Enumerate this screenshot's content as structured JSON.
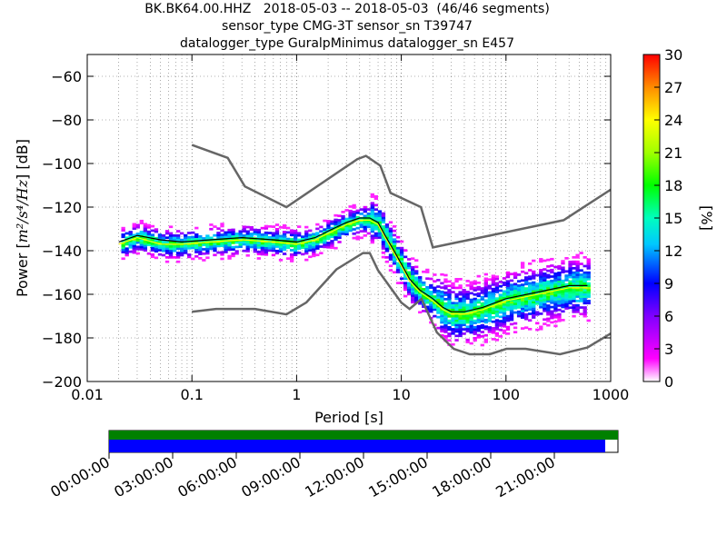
{
  "chart_data": {
    "type": "heatmap",
    "title_lines": [
      "BK.BK64.00.HHZ   2018-05-03 -- 2018-05-03  (46/46 segments)",
      "sensor_type CMG-3T sensor_sn T39747",
      "datalogger_type GuralpMinimus datalogger_sn E457"
    ],
    "xlabel": "Period [s]",
    "ylabel_prefix": "Power [",
    "ylabel_units": "m²/s⁴/Hz",
    "ylabel_suffix": "] [dB]",
    "xscale": "log",
    "xlim": [
      0.01,
      1000
    ],
    "ylim": [
      -200,
      -50
    ],
    "x_ticks": [
      {
        "value": 0.01,
        "label": "0.01"
      },
      {
        "value": 0.1,
        "label": "0.1"
      },
      {
        "value": 1,
        "label": "1"
      },
      {
        "value": 10,
        "label": "10"
      },
      {
        "value": 100,
        "label": "100"
      },
      {
        "value": 1000,
        "label": "1000"
      }
    ],
    "y_ticks": [
      {
        "value": -60,
        "label": "−60"
      },
      {
        "value": -80,
        "label": "−80"
      },
      {
        "value": -100,
        "label": "−100"
      },
      {
        "value": -120,
        "label": "−120"
      },
      {
        "value": -140,
        "label": "−140"
      },
      {
        "value": -160,
        "label": "−160"
      },
      {
        "value": -180,
        "label": "−180"
      },
      {
        "value": -200,
        "label": "−200"
      }
    ],
    "grid": true,
    "colorbar": {
      "label": "[%]",
      "range": [
        0,
        30
      ],
      "ticks": [
        "0",
        "3",
        "6",
        "9",
        "12",
        "15",
        "18",
        "21",
        "24",
        "27",
        "30"
      ]
    },
    "noise_models": {
      "high": [
        [
          0.1,
          -91.5
        ],
        [
          0.22,
          -97.4
        ],
        [
          0.32,
          -110.5
        ],
        [
          0.8,
          -120
        ],
        [
          3.8,
          -98
        ],
        [
          4.6,
          -96.5
        ],
        [
          6.3,
          -101
        ],
        [
          7.9,
          -113.5
        ],
        [
          15.4,
          -120
        ],
        [
          20,
          -138.5
        ],
        [
          354.8,
          -126
        ],
        [
          1000,
          -112
        ]
      ],
      "low": [
        [
          0.1,
          -168
        ],
        [
          0.17,
          -166.7
        ],
        [
          0.4,
          -166.7
        ],
        [
          0.8,
          -169.2
        ],
        [
          1.24,
          -163.7
        ],
        [
          2.4,
          -148.6
        ],
        [
          4.3,
          -141.1
        ],
        [
          5,
          -141.1
        ],
        [
          6,
          -149
        ],
        [
          10,
          -163.8
        ],
        [
          12,
          -166.7
        ],
        [
          15.6,
          -162.1
        ],
        [
          21.9,
          -177.5
        ],
        [
          31.6,
          -185
        ],
        [
          45,
          -187.5
        ],
        [
          70,
          -187.5
        ],
        [
          101,
          -185
        ],
        [
          154,
          -185
        ],
        [
          328,
          -187.5
        ],
        [
          600,
          -184.4
        ],
        [
          1000,
          -178
        ]
      ]
    },
    "median": [
      [
        0.02,
        -136
      ],
      [
        0.03,
        -133
      ],
      [
        0.05,
        -135
      ],
      [
        0.08,
        -136
      ],
      [
        0.15,
        -135
      ],
      [
        0.3,
        -134
      ],
      [
        0.6,
        -135
      ],
      [
        1.0,
        -136
      ],
      [
        1.5,
        -134
      ],
      [
        2.0,
        -131
      ],
      [
        3.0,
        -127
      ],
      [
        4.0,
        -125
      ],
      [
        5.0,
        -125
      ],
      [
        6.0,
        -127
      ],
      [
        7.0,
        -133
      ],
      [
        8.5,
        -140
      ],
      [
        10,
        -146
      ],
      [
        12,
        -153
      ],
      [
        15,
        -158
      ],
      [
        20,
        -162
      ],
      [
        25,
        -166
      ],
      [
        30,
        -168
      ],
      [
        40,
        -168
      ],
      [
        60,
        -166
      ],
      [
        100,
        -162
      ],
      [
        200,
        -159
      ],
      [
        400,
        -156
      ],
      [
        600,
        -156
      ]
    ],
    "mode": [
      [
        0.02,
        -137
      ],
      [
        0.03,
        -134
      ],
      [
        0.05,
        -137
      ],
      [
        0.08,
        -137
      ],
      [
        0.15,
        -136
      ],
      [
        0.3,
        -135
      ],
      [
        0.6,
        -136
      ],
      [
        1.0,
        -137
      ],
      [
        1.5,
        -135
      ],
      [
        2.0,
        -132
      ],
      [
        3.0,
        -128
      ],
      [
        4.0,
        -126
      ],
      [
        5.0,
        -126
      ],
      [
        6.0,
        -128
      ],
      [
        7.0,
        -134
      ],
      [
        8.5,
        -141
      ],
      [
        10,
        -147
      ],
      [
        12,
        -154
      ],
      [
        15,
        -159
      ],
      [
        20,
        -163
      ],
      [
        25,
        -167
      ],
      [
        30,
        -169
      ],
      [
        40,
        -169
      ],
      [
        60,
        -167
      ],
      [
        100,
        -163
      ],
      [
        200,
        -160
      ],
      [
        400,
        -157
      ],
      [
        600,
        -157
      ]
    ],
    "data_coverage": {
      "time_ticks": [
        "00:00:00",
        "03:00:00",
        "06:00:00",
        "09:00:00",
        "12:00:00",
        "15:00:00",
        "18:00:00",
        "21:00:00"
      ],
      "data_fraction": 1.0,
      "psd_fraction": 0.975,
      "data_color": "#008000",
      "psd_color": "#0000ff"
    }
  }
}
